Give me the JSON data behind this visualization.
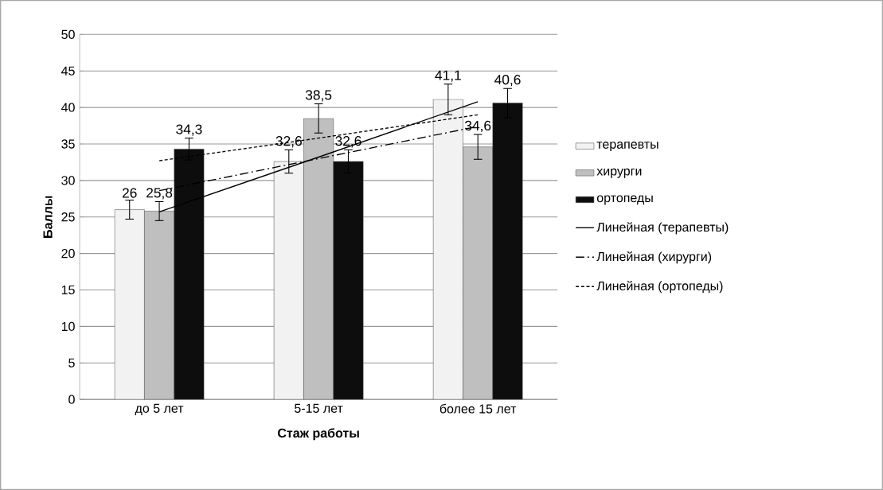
{
  "chart_data": {
    "type": "bar",
    "xlabel": "Стаж работы",
    "ylabel": "Баллы",
    "categories": [
      "до 5 лет",
      "5-15 лет",
      "более 15 лет"
    ],
    "ylim": [
      0,
      50
    ],
    "yticks": [
      0,
      5,
      10,
      15,
      20,
      25,
      30,
      35,
      40,
      45,
      50
    ],
    "grid": "y",
    "legend": "right",
    "series": [
      {
        "name": "терапевты",
        "color": "#f2f2f2",
        "values": [
          26,
          32.6,
          41.1
        ],
        "errors": [
          1.3,
          1.6,
          2.1
        ],
        "value_labels": [
          "26",
          "32,6",
          "41,1"
        ]
      },
      {
        "name": "хирурги",
        "color": "#bfbfbf",
        "values": [
          25.8,
          38.5,
          34.6
        ],
        "errors": [
          1.3,
          2,
          1.7
        ],
        "value_labels": [
          "25,8",
          "38,5",
          "34,6"
        ]
      },
      {
        "name": "ортопеды",
        "color": "#0d0d0d",
        "values": [
          34.3,
          32.6,
          40.6
        ],
        "errors": [
          1.5,
          1.6,
          2
        ],
        "value_labels": [
          "34,3",
          "32,6",
          "40,6"
        ]
      },
      {
        "name": "Линейная (терапевты)",
        "type": "line",
        "color": "#000000",
        "line_style": "solid",
        "values": [
          25.7,
          33.2,
          40.8
        ]
      },
      {
        "name": "Линейная (хирурги)",
        "type": "line",
        "color": "#000000",
        "line_style": "dashdot",
        "values": [
          28.6,
          33.0,
          37.4
        ]
      },
      {
        "name": "Линейная (ортопеды)",
        "type": "line",
        "color": "#000000",
        "line_style": "dashed",
        "values": [
          32.7,
          35.8,
          39.0
        ]
      }
    ]
  }
}
